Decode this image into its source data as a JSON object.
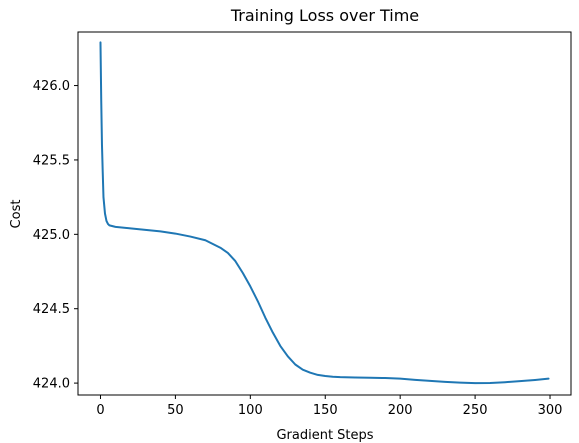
{
  "chart_data": {
    "type": "line",
    "title": "Training Loss over Time",
    "xlabel": "Gradient Steps",
    "ylabel": "Cost",
    "xlim": [
      -15,
      314
    ],
    "ylim": [
      423.92,
      426.36
    ],
    "grid": false,
    "xticks": [
      0,
      50,
      100,
      150,
      200,
      250,
      300
    ],
    "xtick_labels": [
      "0",
      "50",
      "100",
      "150",
      "200",
      "250",
      "300"
    ],
    "yticks": [
      424.0,
      424.5,
      425.0,
      425.5,
      426.0
    ],
    "ytick_labels": [
      "424.0",
      "424.5",
      "425.0",
      "425.5",
      "426.0"
    ],
    "series": [
      {
        "color": "#1f77b4",
        "x": [
          0,
          0.5,
          1,
          1.5,
          2,
          3,
          4,
          5,
          6,
          8,
          10,
          15,
          20,
          30,
          40,
          50,
          60,
          70,
          80,
          85,
          90,
          95,
          100,
          105,
          110,
          115,
          120,
          125,
          130,
          135,
          140,
          145,
          150,
          155,
          160,
          170,
          180,
          190,
          200,
          210,
          220,
          230,
          240,
          250,
          260,
          270,
          280,
          290,
          299
        ],
        "y": [
          426.29,
          425.9,
          425.6,
          425.42,
          425.25,
          425.14,
          425.09,
          425.07,
          425.06,
          425.055,
          425.05,
          425.045,
          425.04,
          425.03,
          425.02,
          425.005,
          424.985,
          424.96,
          424.91,
          424.875,
          424.82,
          424.74,
          424.65,
          424.55,
          424.44,
          424.34,
          424.25,
          424.18,
          424.125,
          424.09,
          424.07,
          424.055,
          424.048,
          424.043,
          424.04,
          424.038,
          424.036,
          424.034,
          424.03,
          424.022,
          424.015,
          424.008,
          424.003,
          424.0,
          424.001,
          424.006,
          424.013,
          424.021,
          424.03
        ]
      }
    ]
  }
}
